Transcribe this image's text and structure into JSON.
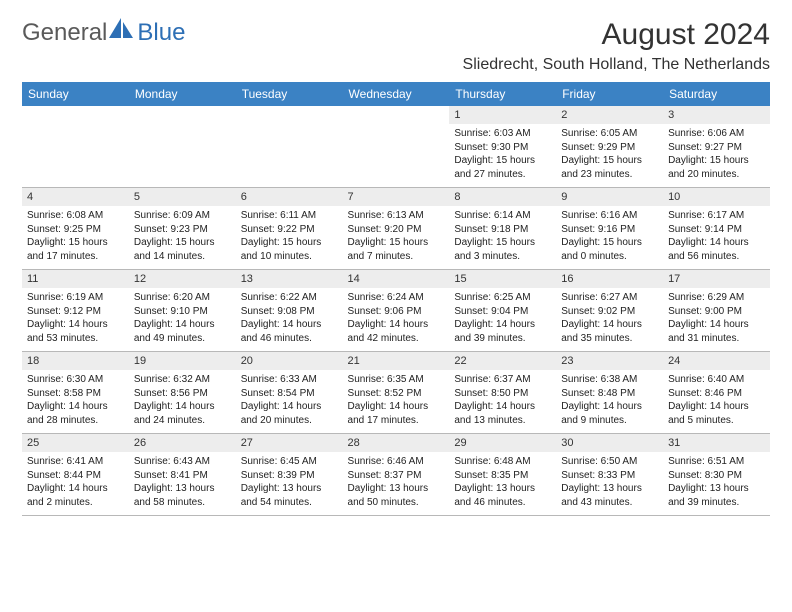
{
  "logo": {
    "text1": "General",
    "text2": "Blue"
  },
  "title": "August 2024",
  "location": "Sliedrecht, South Holland, The Netherlands",
  "colors": {
    "header_bg": "#3b82c4",
    "header_text": "#ffffff",
    "daynum_bg": "#ededed",
    "border": "#b8b8b8",
    "title_color": "#333333",
    "logo_gray": "#5a5a5a",
    "logo_blue": "#2d6fb5"
  },
  "fonts": {
    "title_size_pt": 22,
    "location_size_pt": 12,
    "header_size_pt": 9,
    "daynum_size_pt": 8,
    "body_size_pt": 7.5
  },
  "day_names": [
    "Sunday",
    "Monday",
    "Tuesday",
    "Wednesday",
    "Thursday",
    "Friday",
    "Saturday"
  ],
  "weeks": [
    [
      {
        "n": "",
        "lines": [
          "",
          "",
          "",
          ""
        ]
      },
      {
        "n": "",
        "lines": [
          "",
          "",
          "",
          ""
        ]
      },
      {
        "n": "",
        "lines": [
          "",
          "",
          "",
          ""
        ]
      },
      {
        "n": "",
        "lines": [
          "",
          "",
          "",
          ""
        ]
      },
      {
        "n": "1",
        "lines": [
          "Sunrise: 6:03 AM",
          "Sunset: 9:30 PM",
          "Daylight: 15 hours",
          "and 27 minutes."
        ]
      },
      {
        "n": "2",
        "lines": [
          "Sunrise: 6:05 AM",
          "Sunset: 9:29 PM",
          "Daylight: 15 hours",
          "and 23 minutes."
        ]
      },
      {
        "n": "3",
        "lines": [
          "Sunrise: 6:06 AM",
          "Sunset: 9:27 PM",
          "Daylight: 15 hours",
          "and 20 minutes."
        ]
      }
    ],
    [
      {
        "n": "4",
        "lines": [
          "Sunrise: 6:08 AM",
          "Sunset: 9:25 PM",
          "Daylight: 15 hours",
          "and 17 minutes."
        ]
      },
      {
        "n": "5",
        "lines": [
          "Sunrise: 6:09 AM",
          "Sunset: 9:23 PM",
          "Daylight: 15 hours",
          "and 14 minutes."
        ]
      },
      {
        "n": "6",
        "lines": [
          "Sunrise: 6:11 AM",
          "Sunset: 9:22 PM",
          "Daylight: 15 hours",
          "and 10 minutes."
        ]
      },
      {
        "n": "7",
        "lines": [
          "Sunrise: 6:13 AM",
          "Sunset: 9:20 PM",
          "Daylight: 15 hours",
          "and 7 minutes."
        ]
      },
      {
        "n": "8",
        "lines": [
          "Sunrise: 6:14 AM",
          "Sunset: 9:18 PM",
          "Daylight: 15 hours",
          "and 3 minutes."
        ]
      },
      {
        "n": "9",
        "lines": [
          "Sunrise: 6:16 AM",
          "Sunset: 9:16 PM",
          "Daylight: 15 hours",
          "and 0 minutes."
        ]
      },
      {
        "n": "10",
        "lines": [
          "Sunrise: 6:17 AM",
          "Sunset: 9:14 PM",
          "Daylight: 14 hours",
          "and 56 minutes."
        ]
      }
    ],
    [
      {
        "n": "11",
        "lines": [
          "Sunrise: 6:19 AM",
          "Sunset: 9:12 PM",
          "Daylight: 14 hours",
          "and 53 minutes."
        ]
      },
      {
        "n": "12",
        "lines": [
          "Sunrise: 6:20 AM",
          "Sunset: 9:10 PM",
          "Daylight: 14 hours",
          "and 49 minutes."
        ]
      },
      {
        "n": "13",
        "lines": [
          "Sunrise: 6:22 AM",
          "Sunset: 9:08 PM",
          "Daylight: 14 hours",
          "and 46 minutes."
        ]
      },
      {
        "n": "14",
        "lines": [
          "Sunrise: 6:24 AM",
          "Sunset: 9:06 PM",
          "Daylight: 14 hours",
          "and 42 minutes."
        ]
      },
      {
        "n": "15",
        "lines": [
          "Sunrise: 6:25 AM",
          "Sunset: 9:04 PM",
          "Daylight: 14 hours",
          "and 39 minutes."
        ]
      },
      {
        "n": "16",
        "lines": [
          "Sunrise: 6:27 AM",
          "Sunset: 9:02 PM",
          "Daylight: 14 hours",
          "and 35 minutes."
        ]
      },
      {
        "n": "17",
        "lines": [
          "Sunrise: 6:29 AM",
          "Sunset: 9:00 PM",
          "Daylight: 14 hours",
          "and 31 minutes."
        ]
      }
    ],
    [
      {
        "n": "18",
        "lines": [
          "Sunrise: 6:30 AM",
          "Sunset: 8:58 PM",
          "Daylight: 14 hours",
          "and 28 minutes."
        ]
      },
      {
        "n": "19",
        "lines": [
          "Sunrise: 6:32 AM",
          "Sunset: 8:56 PM",
          "Daylight: 14 hours",
          "and 24 minutes."
        ]
      },
      {
        "n": "20",
        "lines": [
          "Sunrise: 6:33 AM",
          "Sunset: 8:54 PM",
          "Daylight: 14 hours",
          "and 20 minutes."
        ]
      },
      {
        "n": "21",
        "lines": [
          "Sunrise: 6:35 AM",
          "Sunset: 8:52 PM",
          "Daylight: 14 hours",
          "and 17 minutes."
        ]
      },
      {
        "n": "22",
        "lines": [
          "Sunrise: 6:37 AM",
          "Sunset: 8:50 PM",
          "Daylight: 14 hours",
          "and 13 minutes."
        ]
      },
      {
        "n": "23",
        "lines": [
          "Sunrise: 6:38 AM",
          "Sunset: 8:48 PM",
          "Daylight: 14 hours",
          "and 9 minutes."
        ]
      },
      {
        "n": "24",
        "lines": [
          "Sunrise: 6:40 AM",
          "Sunset: 8:46 PM",
          "Daylight: 14 hours",
          "and 5 minutes."
        ]
      }
    ],
    [
      {
        "n": "25",
        "lines": [
          "Sunrise: 6:41 AM",
          "Sunset: 8:44 PM",
          "Daylight: 14 hours",
          "and 2 minutes."
        ]
      },
      {
        "n": "26",
        "lines": [
          "Sunrise: 6:43 AM",
          "Sunset: 8:41 PM",
          "Daylight: 13 hours",
          "and 58 minutes."
        ]
      },
      {
        "n": "27",
        "lines": [
          "Sunrise: 6:45 AM",
          "Sunset: 8:39 PM",
          "Daylight: 13 hours",
          "and 54 minutes."
        ]
      },
      {
        "n": "28",
        "lines": [
          "Sunrise: 6:46 AM",
          "Sunset: 8:37 PM",
          "Daylight: 13 hours",
          "and 50 minutes."
        ]
      },
      {
        "n": "29",
        "lines": [
          "Sunrise: 6:48 AM",
          "Sunset: 8:35 PM",
          "Daylight: 13 hours",
          "and 46 minutes."
        ]
      },
      {
        "n": "30",
        "lines": [
          "Sunrise: 6:50 AM",
          "Sunset: 8:33 PM",
          "Daylight: 13 hours",
          "and 43 minutes."
        ]
      },
      {
        "n": "31",
        "lines": [
          "Sunrise: 6:51 AM",
          "Sunset: 8:30 PM",
          "Daylight: 13 hours",
          "and 39 minutes."
        ]
      }
    ]
  ]
}
